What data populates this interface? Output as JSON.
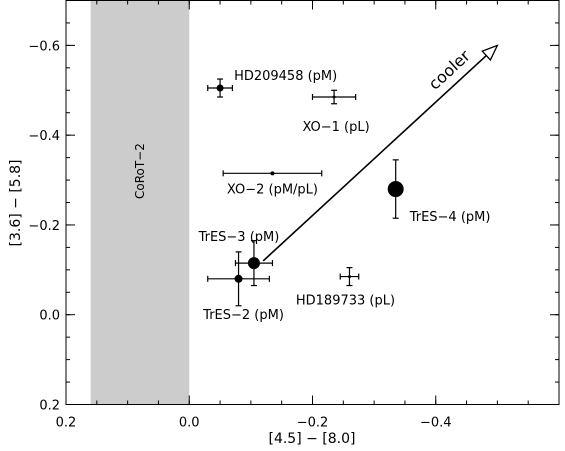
{
  "chart_data": {
    "type": "scatter",
    "title": "",
    "xlabel": "[4.5] − [8.0]",
    "ylabel": "[3.6] − [5.8]",
    "xlim": [
      0.2,
      -0.6
    ],
    "ylim": [
      0.2,
      -0.7
    ],
    "x_ticks": [
      0.2,
      0.0,
      -0.2,
      -0.4
    ],
    "x_tick_labels": [
      "0.2",
      "0.0",
      "−0.2",
      "−0.4"
    ],
    "y_ticks": [
      0.2,
      0.0,
      -0.2,
      -0.4,
      -0.6
    ],
    "y_tick_labels": [
      "0.2",
      "0.0",
      "−0.2",
      "−0.4",
      "−0.6"
    ],
    "shaded_region": {
      "x_from": 0.16,
      "x_to": 0.0,
      "label": "CoRoT−2",
      "color": "#cccccc"
    },
    "points": [
      {
        "label": "HD209458 (pM)",
        "x": -0.05,
        "y": -0.505,
        "xerr": 0.02,
        "yerr": 0.02,
        "filled": true,
        "size": 3.5
      },
      {
        "label": "XO−1 (pL)",
        "x": -0.235,
        "y": -0.485,
        "xerr": 0.035,
        "yerr": 0.015,
        "filled": false,
        "size": 1.5
      },
      {
        "label": "XO−2 (pM/pL)",
        "x": -0.135,
        "y": -0.315,
        "xerr": 0.08,
        "yerr": 0.0,
        "filled": true,
        "size": 2
      },
      {
        "label": "TrES−4 (pM)",
        "x": -0.335,
        "y": -0.28,
        "xerr": 0.0,
        "yerr": 0.065,
        "filled": true,
        "size": 8
      },
      {
        "label": "TrES−3 (pM)",
        "x": -0.105,
        "y": -0.115,
        "xerr": 0.03,
        "yerr": 0.05,
        "filled": true,
        "size": 6
      },
      {
        "label": "TrES−2 (pM)",
        "x": -0.08,
        "y": -0.08,
        "xerr": 0.05,
        "yerr": 0.06,
        "filled": true,
        "size": 4
      },
      {
        "label": "HD189733 (pL)",
        "x": -0.26,
        "y": -0.085,
        "xerr": 0.015,
        "yerr": 0.02,
        "filled": false,
        "size": 1.5
      }
    ],
    "arrow": {
      "label": "cooler",
      "from": [
        -0.12,
        -0.12
      ],
      "to": [
        -0.5,
        -0.6
      ]
    }
  }
}
